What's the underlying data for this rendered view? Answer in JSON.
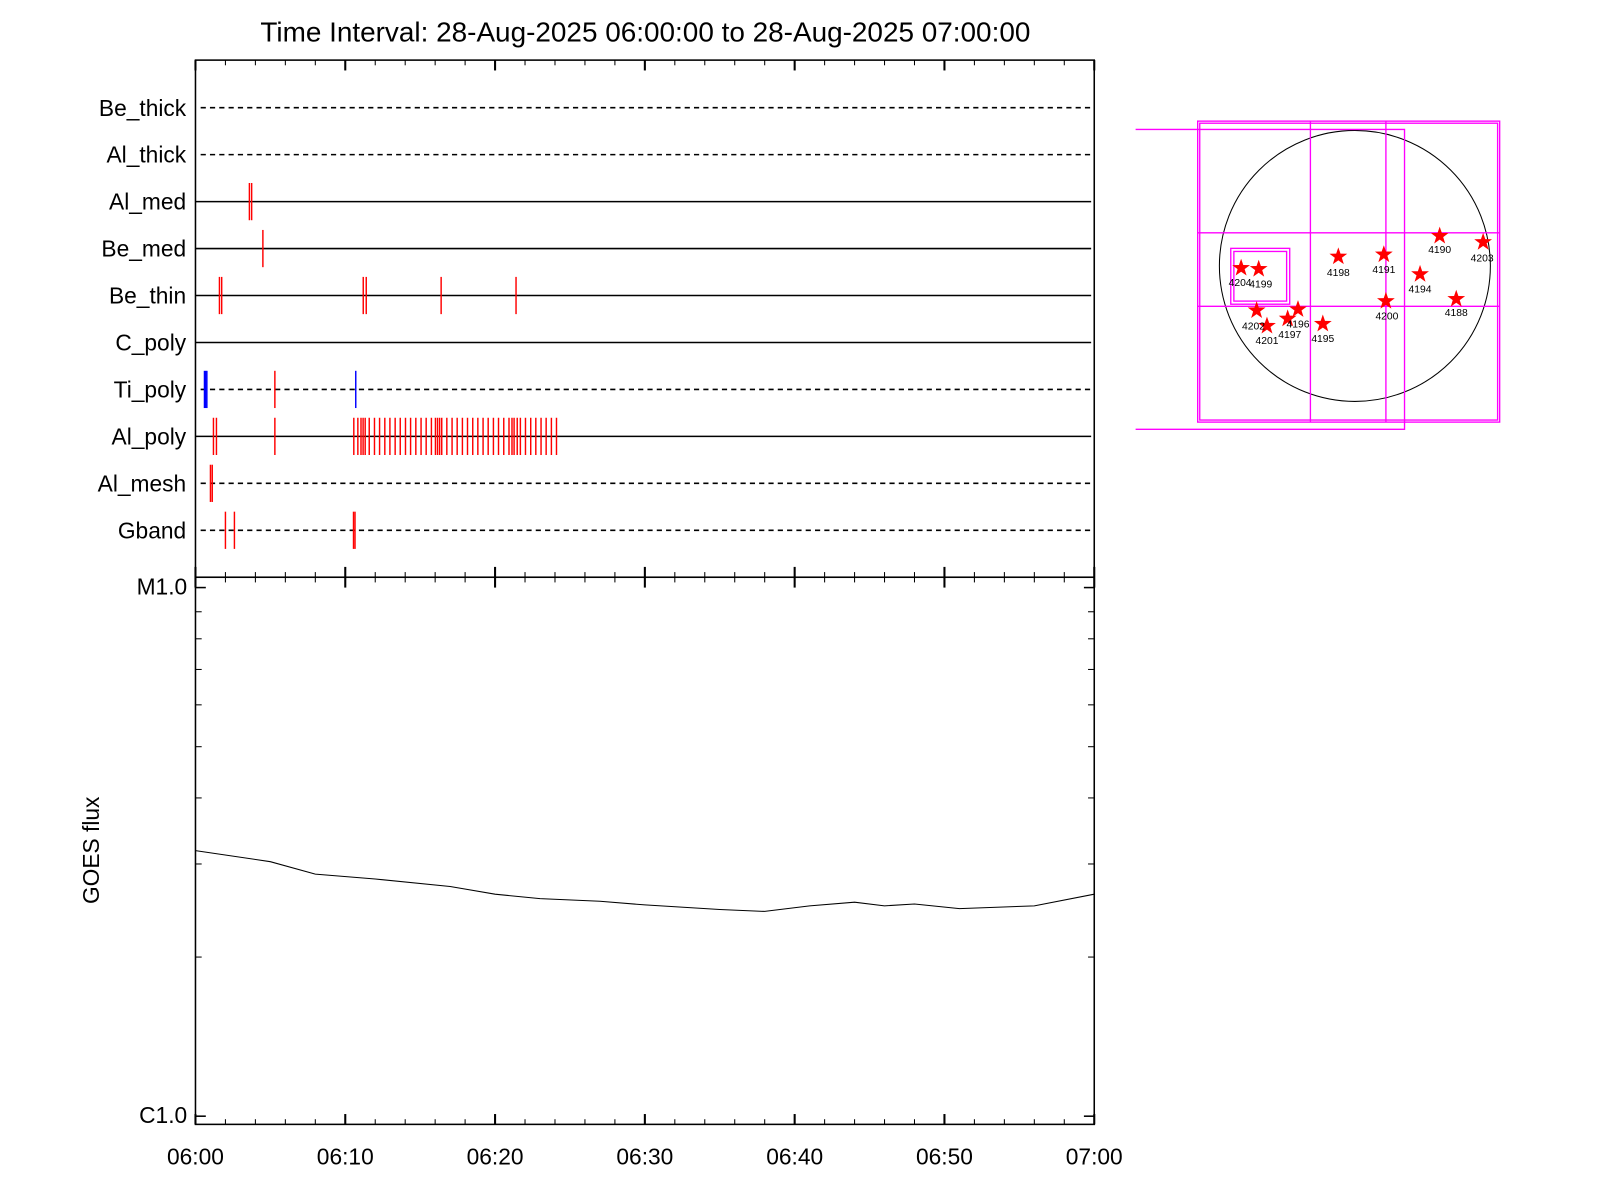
{
  "chart_data": [
    {
      "type": "timeline",
      "title": "Time Interval: 28-Aug-2025 06:00:00 to 28-Aug-2025 07:00:00",
      "xlim": [
        0,
        60
      ],
      "xticks": [
        0,
        10,
        20,
        30,
        40,
        50,
        60
      ],
      "minor_xticks": [
        2,
        4,
        6,
        8,
        12,
        14,
        16,
        18,
        22,
        24,
        26,
        28,
        32,
        34,
        36,
        38,
        42,
        44,
        46,
        48,
        52,
        54,
        56,
        58
      ],
      "rows": [
        {
          "name": "Be_thick",
          "line": "dashed",
          "series": []
        },
        {
          "name": "Al_thick",
          "line": "dashed",
          "series": []
        },
        {
          "name": "Al_med",
          "line": "solid",
          "series": [
            {
              "color": "#ff0000",
              "x": [
                3.6,
                3.75
              ]
            }
          ]
        },
        {
          "name": "Be_med",
          "line": "solid",
          "series": [
            {
              "color": "#ff0000",
              "x": [
                4.5
              ]
            }
          ]
        },
        {
          "name": "Be_thin",
          "line": "solid",
          "series": [
            {
              "color": "#ff0000",
              "x": [
                1.6,
                1.75,
                11.2,
                11.4,
                16.4,
                21.4
              ]
            }
          ]
        },
        {
          "name": "C_poly",
          "line": "solid",
          "series": []
        },
        {
          "name": "Ti_poly",
          "line": "dashed",
          "series": [
            {
              "color": "#0000ff",
              "x": [
                0.6,
                0.68,
                0.76,
                10.7
              ]
            },
            {
              "color": "#ff0000",
              "x": [
                5.3
              ]
            }
          ]
        },
        {
          "name": "Al_poly",
          "line": "solid",
          "series": [
            {
              "color": "#ff0000",
              "x": [
                1.2,
                1.4,
                5.3,
                10.57,
                10.84,
                11.05,
                11.19,
                11.33,
                11.6,
                11.95,
                12.29,
                12.64,
                12.98,
                13.33,
                13.67,
                14.02,
                14.36,
                14.71,
                15.06,
                15.4,
                15.75,
                16.02,
                16.16,
                16.3,
                16.44,
                16.78,
                17.13,
                17.47,
                17.82,
                18.16,
                18.51,
                18.85,
                19.2,
                19.54,
                19.89,
                20.23,
                20.58,
                20.93,
                21.13,
                21.27,
                21.48,
                21.69,
                22.03,
                22.38,
                22.72,
                23.07,
                23.41,
                23.76,
                24.1
              ]
            }
          ]
        },
        {
          "name": "Al_mesh",
          "line": "dashed",
          "series": [
            {
              "color": "#ff0000",
              "x": [
                1.0,
                1.12
              ]
            }
          ]
        },
        {
          "name": "Gband",
          "line": "dashed",
          "series": [
            {
              "color": "#ff0000",
              "x": [
                2.0,
                2.6,
                10.55,
                10.65
              ]
            }
          ]
        }
      ]
    },
    {
      "type": "line",
      "ylabel": "GOES flux",
      "ylog": true,
      "xlim": [
        0,
        60
      ],
      "xticks": [
        {
          "value": 0,
          "label": "06:00"
        },
        {
          "value": 10,
          "label": "06:10"
        },
        {
          "value": 20,
          "label": "06:20"
        },
        {
          "value": 30,
          "label": "06:30"
        },
        {
          "value": 40,
          "label": "06:40"
        },
        {
          "value": 50,
          "label": "06:50"
        },
        {
          "value": 60,
          "label": "07:00"
        }
      ],
      "minor_xticks": [
        2,
        4,
        6,
        8,
        12,
        14,
        16,
        18,
        22,
        24,
        26,
        28,
        32,
        34,
        36,
        38,
        42,
        44,
        46,
        48,
        52,
        54,
        56,
        58
      ],
      "ylim": [
        9.65e-07,
        1.046e-05
      ],
      "yticks": [
        {
          "value": 1e-06,
          "label": "C1.0"
        },
        {
          "value": 1e-05,
          "label": "M1.0"
        }
      ],
      "minor_yticks": [
        2e-06,
        3e-06,
        4e-06,
        5e-06,
        6e-06,
        7e-06,
        8e-06,
        9e-06
      ],
      "color": "#000000",
      "x": [
        0,
        5,
        8,
        12,
        17,
        20,
        23,
        27,
        30,
        35,
        38,
        41,
        44,
        46,
        48,
        51,
        56,
        60
      ],
      "values": [
        3.18e-06,
        3.03e-06,
        2.87e-06,
        2.81e-06,
        2.72e-06,
        2.63e-06,
        2.58e-06,
        2.55e-06,
        2.51e-06,
        2.46e-06,
        2.44e-06,
        2.5e-06,
        2.54e-06,
        2.5e-06,
        2.52e-06,
        2.47e-06,
        2.5e-06,
        2.63e-06
      ]
    }
  ],
  "map": {
    "regions": [
      "4190",
      "4203",
      "4198",
      "4191",
      "4194",
      "4204",
      "4199",
      "4200",
      "4188",
      "4202",
      "4196",
      "4197",
      "4201",
      "4195"
    ]
  }
}
